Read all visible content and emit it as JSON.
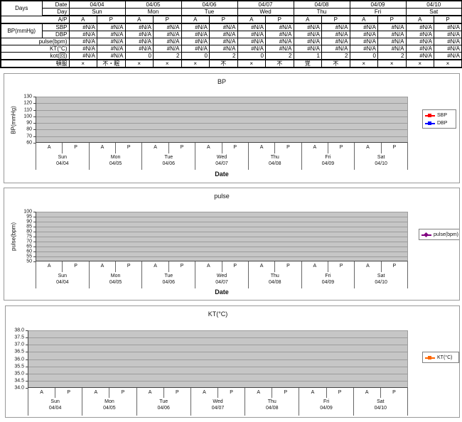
{
  "table": {
    "corner_label": "Days",
    "row_labels": {
      "date": "Date",
      "day": "Day",
      "ap": "A/P",
      "bp_group": "BP(mmHg)",
      "sbp": "SBP",
      "dbp": "DBP",
      "pulse": "pulse(bpm)",
      "kt": "KT(°C)",
      "kot": "kot(回)",
      "tonpuku": "頓服"
    },
    "dates": [
      "04/04",
      "04/05",
      "04/06",
      "04/07",
      "04/08",
      "04/09",
      "04/10"
    ],
    "days": [
      "Sun",
      "Mon",
      "Tue",
      "Wed",
      "Thu",
      "Fri",
      "Sat"
    ],
    "ap_sublabels": [
      "A",
      "P"
    ],
    "values": {
      "sbp": [
        "#N/A",
        "#N/A",
        "#N/A",
        "#N/A",
        "#N/A",
        "#N/A",
        "#N/A",
        "#N/A",
        "#N/A",
        "#N/A",
        "#N/A",
        "#N/A",
        "#N/A",
        "#N/A"
      ],
      "dbp": [
        "#N/A",
        "#N/A",
        "#N/A",
        "#N/A",
        "#N/A",
        "#N/A",
        "#N/A",
        "#N/A",
        "#N/A",
        "#N/A",
        "#N/A",
        "#N/A",
        "#N/A",
        "#N/A"
      ],
      "pulse": [
        "#N/A",
        "#N/A",
        "#N/A",
        "#N/A",
        "#N/A",
        "#N/A",
        "#N/A",
        "#N/A",
        "#N/A",
        "#N/A",
        "#N/A",
        "#N/A",
        "#N/A",
        "#N/A"
      ],
      "kt": [
        "#N/A",
        "#N/A",
        "#N/A",
        "#N/A",
        "#N/A",
        "#N/A",
        "#N/A",
        "#N/A",
        "#N/A",
        "#N/A",
        "#N/A",
        "#N/A",
        "#N/A",
        "#N/A"
      ],
      "kot": [
        "#N/A",
        "#N/A",
        "0",
        "2",
        "0",
        "2",
        "0",
        "2",
        "1",
        "2",
        "0",
        "2",
        "#N/A",
        "#N/A"
      ],
      "tonpuku": [
        "×",
        "不・眠",
        "×",
        "×",
        "×",
        "不",
        "×",
        "不",
        "覚",
        "不",
        "×",
        "×",
        "×",
        "×"
      ]
    }
  },
  "chart_data": [
    {
      "type": "line",
      "title": "BP",
      "xlabel": "Date",
      "ylabel": "BP(mmHg)",
      "ylim": [
        60,
        130
      ],
      "ytick_interval": 10,
      "yticks": [
        "130",
        "120",
        "110",
        "100",
        "90",
        "80",
        "70",
        "60"
      ],
      "x_days": [
        "Sun",
        "Mon",
        "Tue",
        "Wed",
        "Thu",
        "Fri",
        "Sat"
      ],
      "x_dates": [
        "04/04",
        "04/05",
        "04/06",
        "04/07",
        "04/08",
        "04/09",
        "04/10"
      ],
      "x_sublabels": [
        "A",
        "P"
      ],
      "grid": true,
      "plot_bg_color": "#c6c6c6",
      "legend_position": "right",
      "series": [
        {
          "name": "SBP",
          "color": "#ff0000",
          "marker": "square",
          "values": [
            null,
            null,
            null,
            null,
            null,
            null,
            null,
            null,
            null,
            null,
            null,
            null,
            null,
            null
          ]
        },
        {
          "name": "DBP",
          "color": "#0000ff",
          "marker": "square",
          "values": [
            null,
            null,
            null,
            null,
            null,
            null,
            null,
            null,
            null,
            null,
            null,
            null,
            null,
            null
          ]
        }
      ]
    },
    {
      "type": "line",
      "title": "pulse",
      "xlabel": "Date",
      "ylabel": "pulse(bpm)",
      "ylim": [
        50,
        100
      ],
      "ytick_interval": 5,
      "yticks": [
        "100",
        "95",
        "90",
        "85",
        "80",
        "75",
        "70",
        "65",
        "60",
        "55",
        "50"
      ],
      "x_days": [
        "Sun",
        "Mon",
        "Tue",
        "Wed",
        "Thu",
        "Fri",
        "Sat"
      ],
      "x_dates": [
        "04/04",
        "04/05",
        "04/06",
        "04/07",
        "04/08",
        "04/09",
        "04/10"
      ],
      "x_sublabels": [
        "A",
        "P"
      ],
      "grid": true,
      "plot_bg_color": "#c6c6c6",
      "legend_position": "right",
      "series": [
        {
          "name": "pulse(bpm)",
          "color": "#800080",
          "marker": "diamond",
          "values": [
            null,
            null,
            null,
            null,
            null,
            null,
            null,
            null,
            null,
            null,
            null,
            null,
            null,
            null
          ]
        }
      ]
    },
    {
      "type": "line",
      "title": "KT(°C)",
      "xlabel": "",
      "ylabel": "",
      "ylim": [
        34.0,
        38.0
      ],
      "ytick_interval": 0.5,
      "yticks": [
        "38.0",
        "37.5",
        "37.0",
        "36.5",
        "36.0",
        "35.5",
        "35.0",
        "34.5",
        "34.0"
      ],
      "x_days": [
        "Sun",
        "Mon",
        "Tue",
        "Wed",
        "Thu",
        "Fri",
        "Sat"
      ],
      "x_dates": [
        "04/04",
        "04/05",
        "04/06",
        "04/07",
        "04/08",
        "04/09",
        "04/10"
      ],
      "x_sublabels": [
        "A",
        "P"
      ],
      "grid": true,
      "plot_bg_color": "#c6c6c6",
      "legend_position": "right",
      "series": [
        {
          "name": "KT(°C)",
          "color": "#ff6600",
          "marker": "square",
          "values": [
            null,
            null,
            null,
            null,
            null,
            null,
            null,
            null,
            null,
            null,
            null,
            null,
            null,
            null
          ]
        }
      ]
    }
  ]
}
